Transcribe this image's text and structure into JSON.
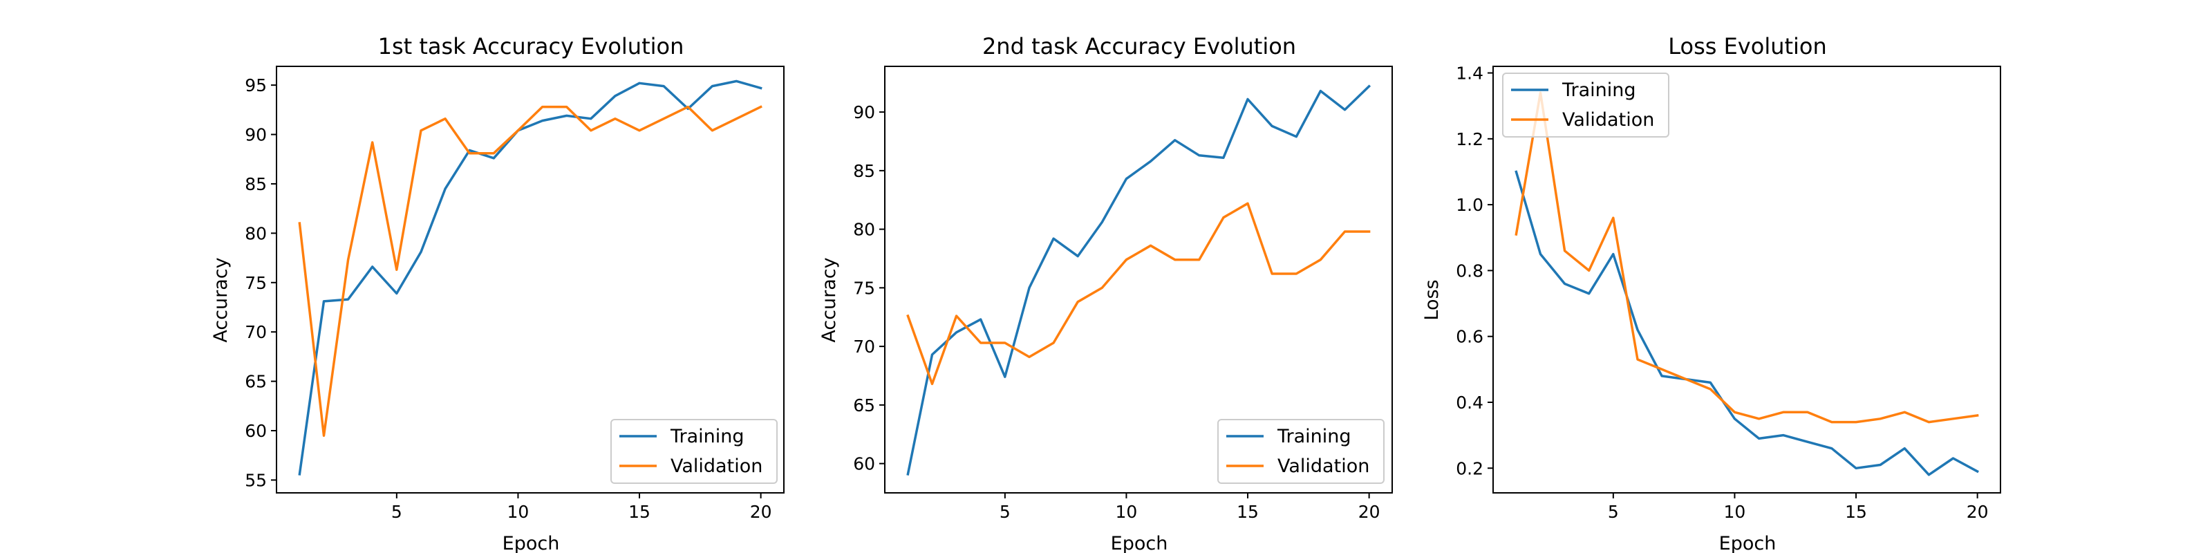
{
  "chart_data": [
    {
      "type": "line",
      "title": "1st task Accuracy Evolution",
      "xlabel": "Epoch",
      "ylabel": "Accuracy",
      "x": [
        1,
        2,
        3,
        4,
        5,
        6,
        7,
        8,
        9,
        10,
        11,
        12,
        13,
        14,
        15,
        16,
        17,
        18,
        19,
        20
      ],
      "xlim": [
        0.05,
        20.95
      ],
      "ylim": [
        53.7,
        96.9
      ],
      "xticks": [
        5,
        10,
        15,
        20
      ],
      "yticks": [
        55,
        60,
        65,
        70,
        75,
        80,
        85,
        90,
        95
      ],
      "legend": "lower right",
      "grid": false,
      "series": [
        {
          "name": "Training",
          "color": "#1f77b4",
          "values": [
            55.6,
            73.1,
            73.3,
            76.6,
            73.9,
            78.1,
            84.5,
            88.4,
            87.6,
            90.4,
            91.4,
            91.9,
            91.6,
            93.9,
            95.2,
            94.9,
            92.6,
            94.9,
            95.4,
            94.7
          ]
        },
        {
          "name": "Validation",
          "color": "#ff7f0e",
          "values": [
            81.0,
            59.5,
            77.3,
            89.2,
            76.3,
            90.4,
            91.6,
            88.1,
            88.1,
            90.4,
            92.8,
            92.8,
            90.4,
            91.6,
            90.4,
            91.6,
            92.8,
            90.4,
            91.6,
            92.8
          ]
        }
      ]
    },
    {
      "type": "line",
      "title": "2nd task Accuracy Evolution",
      "xlabel": "Epoch",
      "ylabel": "Accuracy",
      "x": [
        1,
        2,
        3,
        4,
        5,
        6,
        7,
        8,
        9,
        10,
        11,
        12,
        13,
        14,
        15,
        16,
        17,
        18,
        19,
        20
      ],
      "xlim": [
        0.05,
        20.95
      ],
      "ylim": [
        57.5,
        93.9
      ],
      "xticks": [
        5,
        10,
        15,
        20
      ],
      "yticks": [
        60,
        65,
        70,
        75,
        80,
        85,
        90
      ],
      "legend": "lower right",
      "grid": false,
      "series": [
        {
          "name": "Training",
          "color": "#1f77b4",
          "values": [
            59.1,
            69.3,
            71.2,
            72.3,
            67.4,
            75.0,
            79.2,
            77.7,
            80.6,
            84.3,
            85.8,
            87.6,
            86.3,
            86.1,
            91.1,
            88.8,
            87.9,
            91.8,
            90.2,
            92.2
          ]
        },
        {
          "name": "Validation",
          "color": "#ff7f0e",
          "values": [
            72.6,
            66.8,
            72.6,
            70.3,
            70.3,
            69.1,
            70.3,
            73.8,
            75.0,
            77.4,
            78.6,
            77.4,
            77.4,
            81.0,
            82.2,
            76.2,
            76.2,
            77.4,
            79.8,
            79.8
          ]
        }
      ]
    },
    {
      "type": "line",
      "title": "Loss Evolution",
      "xlabel": "Epoch",
      "ylabel": "Loss",
      "x": [
        1,
        2,
        3,
        4,
        5,
        6,
        7,
        8,
        9,
        10,
        11,
        12,
        13,
        14,
        15,
        16,
        17,
        18,
        19,
        20
      ],
      "xlim": [
        0.05,
        20.95
      ],
      "ylim": [
        0.125,
        1.42
      ],
      "xticks": [
        5,
        10,
        15,
        20
      ],
      "yticks": [
        0.2,
        0.4,
        0.6,
        0.8,
        1.0,
        1.2,
        1.4
      ],
      "legend": "upper left",
      "grid": false,
      "series": [
        {
          "name": "Training",
          "color": "#1f77b4",
          "values": [
            1.1,
            0.85,
            0.76,
            0.73,
            0.85,
            0.62,
            0.48,
            0.47,
            0.46,
            0.35,
            0.29,
            0.3,
            0.28,
            0.26,
            0.2,
            0.21,
            0.26,
            0.18,
            0.23,
            0.19
          ]
        },
        {
          "name": "Validation",
          "color": "#ff7f0e",
          "values": [
            0.91,
            1.34,
            0.86,
            0.8,
            0.96,
            0.53,
            0.5,
            0.47,
            0.44,
            0.37,
            0.35,
            0.37,
            0.37,
            0.34,
            0.34,
            0.35,
            0.37,
            0.34,
            0.35,
            0.36
          ]
        }
      ]
    }
  ]
}
